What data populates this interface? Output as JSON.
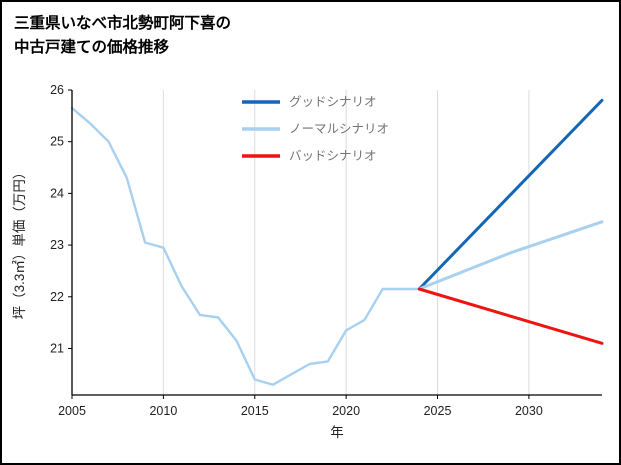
{
  "title": {
    "line1": "三重県いなべ市北勢町阿下喜の",
    "line2": "中古戸建ての価格推移"
  },
  "chart_data": {
    "type": "line",
    "title": "三重県いなべ市北勢町阿下喜の中古戸建ての価格推移",
    "xlabel": "年",
    "ylabel": "坪（3.3㎡）単価（万円）",
    "xlim": [
      2005,
      2034
    ],
    "ylim": [
      20.1,
      26
    ],
    "xticks": [
      2005,
      2010,
      2015,
      2020,
      2025,
      2030
    ],
    "yticks": [
      21,
      22,
      23,
      24,
      25,
      26
    ],
    "grid": "vertical-only",
    "grid_color": "#dcdcdc",
    "axis_color": "#000000",
    "tick_label_color": "#222222",
    "legend_text_color": "#737373",
    "legend_position": "top-center-inside",
    "legend": [
      {
        "label": "グッドシナリオ",
        "color": "#1467b4"
      },
      {
        "label": "ノーマルシナリオ",
        "color": "#a8d1f0"
      },
      {
        "label": "バッドシナリオ",
        "color": "#ee1410"
      }
    ],
    "series": [
      {
        "id": "history",
        "color": "#a8d1f0",
        "width": 2.4,
        "x": [
          2005,
          2006,
          2007,
          2008,
          2009,
          2010,
          2011,
          2012,
          2013,
          2014,
          2015,
          2016,
          2017,
          2018,
          2019,
          2020,
          2021,
          2022,
          2023,
          2024
        ],
        "y": [
          25.65,
          25.35,
          25.0,
          24.3,
          23.05,
          22.95,
          22.2,
          21.65,
          21.6,
          21.15,
          20.4,
          20.3,
          20.5,
          20.7,
          20.75,
          21.35,
          21.55,
          22.15,
          22.15,
          22.15
        ]
      },
      {
        "id": "good-scenario",
        "color": "#1467b4",
        "width": 3,
        "x": [
          2024,
          2034
        ],
        "y": [
          22.15,
          25.8
        ]
      },
      {
        "id": "normal-scenario",
        "color": "#a8d1f0",
        "width": 3,
        "x": [
          2024,
          2029,
          2034
        ],
        "y": [
          22.15,
          22.85,
          23.45
        ]
      },
      {
        "id": "bad-scenario",
        "color": "#ee1410",
        "width": 3,
        "x": [
          2024,
          2034
        ],
        "y": [
          22.15,
          21.1
        ]
      }
    ]
  }
}
